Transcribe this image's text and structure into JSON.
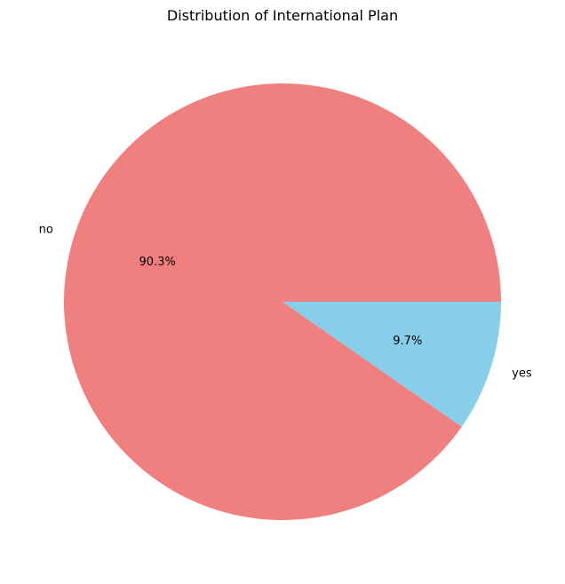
{
  "chart_data": {
    "type": "pie",
    "title": "Distribution of International Plan",
    "categories": [
      "no",
      "yes"
    ],
    "values": [
      90.3,
      9.7
    ],
    "value_labels": [
      "90.3%",
      "9.7%"
    ],
    "colors": [
      "#f08080",
      "#87ceeb"
    ],
    "start_angle_deg": 0,
    "direction": "counterclockwise",
    "legend": "none"
  }
}
